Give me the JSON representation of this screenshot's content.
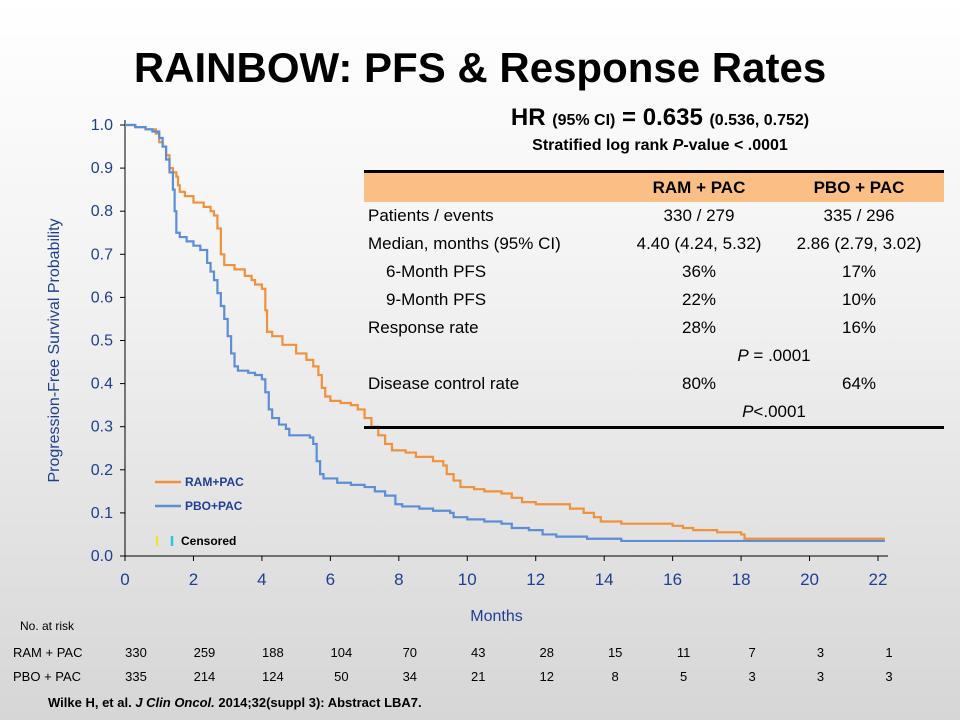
{
  "title": "RAINBOW: PFS & Response Rates",
  "hr": {
    "prefix": "HR",
    "ci_label": "(95% CI)",
    "eq": "= 0.635",
    "ci": "(0.536, 0.752)"
  },
  "stratified": {
    "pre": "Stratified log rank ",
    "p": "P",
    "post": "-value < .0001"
  },
  "table": {
    "col1": "RAM + PAC",
    "col2": "PBO + PAC",
    "rows": [
      {
        "label": "Patients / events",
        "v1": "330 / 279",
        "v2": "335 / 296"
      },
      {
        "label": "Median, months (95% CI)",
        "v1": "4.40 (4.24, 5.32)",
        "v2": "2.86 (2.79, 3.02)"
      },
      {
        "label": "6-Month PFS",
        "v1": "36%",
        "v2": "17%"
      },
      {
        "label": "9-Month PFS",
        "v1": "22%",
        "v2": "10%"
      },
      {
        "label": "Response rate",
        "v1": "28%",
        "v2": "16%"
      },
      {
        "label": "Disease control rate",
        "v1": "80%",
        "v2": "64%"
      }
    ],
    "p_response": {
      "p": "P",
      "text": " = .0001"
    },
    "p_dcr": {
      "p": "P",
      "text": "<.0001"
    }
  },
  "risk": {
    "title": "No. at risk",
    "rows": [
      {
        "label": "RAM + PAC",
        "values": [
          "330",
          "259",
          "188",
          "104",
          "70",
          "43",
          "28",
          "15",
          "11",
          "7",
          "3",
          "1"
        ]
      },
      {
        "label": "PBO + PAC",
        "values": [
          "335",
          "214",
          "124",
          "50",
          "34",
          "21",
          "12",
          "8",
          "5",
          "3",
          "3",
          "3"
        ]
      }
    ]
  },
  "citation": {
    "pre": "Wilke H, et al. ",
    "journal": "J Clin Oncol.",
    "post": " 2014;32(suppl 3): Abstract LBA7."
  },
  "chart_data": {
    "type": "line",
    "title": "",
    "xlabel": "Months",
    "ylabel": "Progression-Free Survival Probability",
    "xlim": [
      0,
      22
    ],
    "ylim": [
      0,
      1.0
    ],
    "xticks": [
      "0",
      "2",
      "4",
      "6",
      "8",
      "10",
      "12",
      "14",
      "16",
      "18",
      "20",
      "22"
    ],
    "yticks": [
      "0.0",
      "0.1",
      "0.2",
      "0.3",
      "0.4",
      "0.5",
      "0.6",
      "0.7",
      "0.8",
      "0.9",
      "1.0"
    ],
    "legend": {
      "placement": "bottom-left",
      "censored_label": "Censored"
    },
    "series": [
      {
        "name": "RAM+PAC",
        "color": "#f0913b",
        "points": [
          [
            0,
            1.0
          ],
          [
            0.3,
            0.995
          ],
          [
            0.6,
            0.99
          ],
          [
            0.9,
            0.98
          ],
          [
            1.0,
            0.96
          ],
          [
            1.1,
            0.95
          ],
          [
            1.2,
            0.93
          ],
          [
            1.3,
            0.9
          ],
          [
            1.4,
            0.89
          ],
          [
            1.5,
            0.88
          ],
          [
            1.55,
            0.86
          ],
          [
            1.6,
            0.845
          ],
          [
            1.75,
            0.835
          ],
          [
            2.0,
            0.82
          ],
          [
            2.3,
            0.81
          ],
          [
            2.5,
            0.8
          ],
          [
            2.6,
            0.79
          ],
          [
            2.7,
            0.76
          ],
          [
            2.8,
            0.7
          ],
          [
            2.9,
            0.675
          ],
          [
            3.2,
            0.665
          ],
          [
            3.5,
            0.65
          ],
          [
            3.7,
            0.64
          ],
          [
            3.8,
            0.63
          ],
          [
            4.0,
            0.62
          ],
          [
            4.1,
            0.57
          ],
          [
            4.15,
            0.52
          ],
          [
            4.3,
            0.51
          ],
          [
            4.6,
            0.49
          ],
          [
            5.0,
            0.47
          ],
          [
            5.3,
            0.455
          ],
          [
            5.5,
            0.44
          ],
          [
            5.65,
            0.42
          ],
          [
            5.75,
            0.39
          ],
          [
            5.85,
            0.37
          ],
          [
            6.0,
            0.36
          ],
          [
            6.3,
            0.355
          ],
          [
            6.6,
            0.35
          ],
          [
            6.8,
            0.34
          ],
          [
            7.0,
            0.32
          ],
          [
            7.2,
            0.3
          ],
          [
            7.4,
            0.28
          ],
          [
            7.6,
            0.26
          ],
          [
            7.8,
            0.245
          ],
          [
            8.2,
            0.24
          ],
          [
            8.5,
            0.23
          ],
          [
            9.0,
            0.22
          ],
          [
            9.3,
            0.21
          ],
          [
            9.4,
            0.19
          ],
          [
            9.6,
            0.175
          ],
          [
            9.8,
            0.16
          ],
          [
            10.2,
            0.155
          ],
          [
            10.5,
            0.15
          ],
          [
            11.0,
            0.145
          ],
          [
            11.3,
            0.135
          ],
          [
            11.6,
            0.125
          ],
          [
            12.0,
            0.12
          ],
          [
            12.5,
            0.12
          ],
          [
            13.0,
            0.11
          ],
          [
            13.4,
            0.1
          ],
          [
            13.7,
            0.09
          ],
          [
            13.9,
            0.08
          ],
          [
            14.5,
            0.075
          ],
          [
            15.5,
            0.075
          ],
          [
            16.0,
            0.07
          ],
          [
            16.3,
            0.065
          ],
          [
            16.6,
            0.06
          ],
          [
            17.3,
            0.055
          ],
          [
            18.0,
            0.05
          ],
          [
            18.1,
            0.04
          ],
          [
            20.0,
            0.04
          ],
          [
            22.2,
            0.04
          ]
        ]
      },
      {
        "name": "PBO+PAC",
        "color": "#5b8ed6",
        "points": [
          [
            0,
            1.0
          ],
          [
            0.3,
            0.995
          ],
          [
            0.6,
            0.99
          ],
          [
            0.8,
            0.985
          ],
          [
            1.0,
            0.97
          ],
          [
            1.1,
            0.95
          ],
          [
            1.2,
            0.92
          ],
          [
            1.3,
            0.89
          ],
          [
            1.4,
            0.85
          ],
          [
            1.45,
            0.8
          ],
          [
            1.5,
            0.75
          ],
          [
            1.6,
            0.74
          ],
          [
            1.8,
            0.73
          ],
          [
            2.0,
            0.72
          ],
          [
            2.2,
            0.71
          ],
          [
            2.4,
            0.68
          ],
          [
            2.5,
            0.66
          ],
          [
            2.6,
            0.64
          ],
          [
            2.7,
            0.61
          ],
          [
            2.8,
            0.58
          ],
          [
            2.9,
            0.55
          ],
          [
            3.0,
            0.51
          ],
          [
            3.1,
            0.47
          ],
          [
            3.2,
            0.44
          ],
          [
            3.3,
            0.43
          ],
          [
            3.6,
            0.425
          ],
          [
            3.8,
            0.42
          ],
          [
            4.0,
            0.41
          ],
          [
            4.1,
            0.38
          ],
          [
            4.2,
            0.34
          ],
          [
            4.3,
            0.32
          ],
          [
            4.5,
            0.305
          ],
          [
            4.7,
            0.295
          ],
          [
            4.8,
            0.28
          ],
          [
            5.2,
            0.28
          ],
          [
            5.4,
            0.275
          ],
          [
            5.5,
            0.26
          ],
          [
            5.6,
            0.22
          ],
          [
            5.7,
            0.19
          ],
          [
            5.8,
            0.18
          ],
          [
            6.2,
            0.17
          ],
          [
            6.6,
            0.165
          ],
          [
            7.0,
            0.16
          ],
          [
            7.3,
            0.15
          ],
          [
            7.6,
            0.14
          ],
          [
            7.9,
            0.12
          ],
          [
            8.1,
            0.115
          ],
          [
            8.6,
            0.11
          ],
          [
            9.0,
            0.105
          ],
          [
            9.5,
            0.1
          ],
          [
            9.6,
            0.09
          ],
          [
            10.0,
            0.085
          ],
          [
            10.5,
            0.08
          ],
          [
            11.0,
            0.075
          ],
          [
            11.3,
            0.065
          ],
          [
            11.8,
            0.06
          ],
          [
            12.2,
            0.05
          ],
          [
            12.6,
            0.045
          ],
          [
            13.5,
            0.04
          ],
          [
            14.5,
            0.035
          ],
          [
            16.0,
            0.035
          ],
          [
            18.0,
            0.035
          ],
          [
            22.2,
            0.035
          ]
        ]
      }
    ]
  }
}
